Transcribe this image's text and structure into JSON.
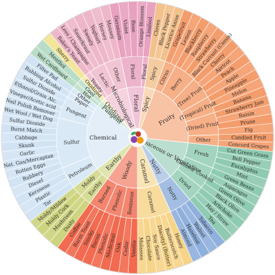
{
  "wheel": {
    "categories": [
      {
        "name": "Floral",
        "color": "#e8a2c0",
        "subs": [
          {
            "name": "Floral",
            "tastes": [
              "Geranium",
              "Violet",
              "Rose",
              "Orange Blossom"
            ]
          },
          {
            "name": "Floral",
            "tastes": [
              "Linalool"
            ]
          }
        ]
      },
      {
        "name": "Spicy",
        "color": "#f3c18c",
        "subs": [
          {
            "name": "Spicy",
            "tastes": [
              "Cloves",
              "Black Pepper",
              "Licorice Anise"
            ]
          }
        ]
      },
      {
        "name": "Fruity",
        "color": "#f49d6c",
        "subs": [
          {
            "name": "Citrus",
            "tastes": [
              "Grapefruit",
              "Lemon"
            ]
          },
          {
            "name": "Berry",
            "tastes": [
              "Blackberry",
              "Raspberry",
              "Strawberry",
              "Black Currant (Cassis)"
            ]
          },
          {
            "name": "(Tree) Fruit",
            "tastes": [
              "Cherry",
              "Apricot",
              "Peach",
              "Apple"
            ]
          },
          {
            "name": "(Tropical) Fruit",
            "tastes": [
              "Pineapple",
              "Melon",
              "Banana"
            ]
          },
          {
            "name": "(Dried) Fruit",
            "tastes": [
              "Strawberry Jam",
              "Raisin",
              "Prune",
              "Fig"
            ]
          },
          {
            "name": "Other",
            "tastes": [
              "Candied Fruit",
              "Concord Grapes"
            ]
          }
        ]
      },
      {
        "name": "Herbaceous or Vegetative",
        "color": "#8fcab2",
        "subs": [
          {
            "name": "Fresh",
            "tastes": [
              "Cut Green Grass",
              "Bell Pepper",
              "Eucalyptus",
              "Mint"
            ]
          },
          {
            "name": "Canned/ Cooked",
            "tastes": [
              "Green Beans",
              "Asparagus",
              "Green Olive",
              "Black Olive"
            ]
          },
          {
            "name": "Dried",
            "tastes": [
              "Artichoke",
              "Hay / Straw",
              "Tea"
            ]
          }
        ]
      },
      {
        "name": "Nutty",
        "color": "#8fb0dc",
        "subs": [
          {
            "name": "Nutty",
            "tastes": [
              "Tobacco",
              "Walnut",
              "Hazelnut",
              "Almond"
            ]
          }
        ]
      },
      {
        "name": "Caramel",
        "color": "#f6d488",
        "subs": [
          {
            "name": "Caramel",
            "tastes": [
              "Honey",
              "Butterscotch",
              "Diacetyl (Butter)",
              "Soy Sauce",
              "Chocolate",
              "Molasses"
            ]
          }
        ]
      },
      {
        "name": "Woody",
        "color": "#f26a4f",
        "subs": [
          {
            "name": "Resinous",
            "tastes": [
              "Vanilla",
              "Cedar",
              "Oak"
            ]
          },
          {
            "name": "Phenolic",
            "tastes": [
              "Medicinal",
              "Phenolic",
              "Bacon"
            ]
          },
          {
            "name": "Burned",
            "tastes": [
              "Smoky",
              "Burnt Toast",
              "Coffee"
            ]
          }
        ]
      },
      {
        "name": "Earthy",
        "color": "#cdd47e",
        "subs": [
          {
            "name": "Earthy",
            "tastes": [
              "Dusty",
              "Mushroom"
            ]
          },
          {
            "name": "Moldy",
            "tastes": [
              "Moldy Cork",
              "Moldy/Mildew"
            ]
          }
        ]
      },
      {
        "name": "Chemical",
        "color": "#d2e4f4",
        "subs": [
          {
            "name": "Petroleum",
            "tastes": [
              "Tar",
              "Plastic",
              "Kerosene",
              "Diesel"
            ]
          },
          {
            "name": "Sulfur",
            "tastes": [
              "Rubbery",
              "Rotten Eggs",
              "Nat. Gas/Mercaptan",
              "Garlic",
              "Skunk",
              "Cabbage",
              "Burnt Match",
              "Sulfur Dioxide",
              "Wet Wool / Wet Dog"
            ]
          },
          {
            "name": "Pungent",
            "tastes": [
              "Nail Polish Remover",
              "Vinegar/Acetic acid",
              "Ethanol/Grain Alc.",
              "Sulfur Dioxide"
            ]
          },
          {
            "name": "Paper",
            "tastes": [
              "Rubbing Alcohol"
            ]
          },
          {
            "name": "Other",
            "tastes": [
              "Filter Pad"
            ]
          }
        ]
      },
      {
        "name": "Pungent",
        "color": "#b8dcc6",
        "subs": [
          {
            "name": "Hot",
            "tastes": [
              "Wet Cardboard"
            ]
          },
          {
            "name": "Cool",
            "tastes": [
              "Menthol"
            ]
          }
        ]
      },
      {
        "name": "Oxidized",
        "color": "#f3e59a",
        "subs": [
          {
            "name": "Oxidized",
            "tastes": [
              "Sherry"
            ]
          }
        ]
      },
      {
        "name": "Microbiological",
        "color": "#eeb7c9",
        "subs": [
          {
            "name": "Yeasty",
            "tastes": [
              "Baker's Yeast"
            ]
          },
          {
            "name": "Lactic",
            "tastes": [
              "Lees / Champagne",
              "Sauerkraut",
              "Sweaty"
            ]
          },
          {
            "name": "Other",
            "tastes": [
              "Yoghurt",
              "Horsey",
              "Mousey"
            ]
          }
        ]
      }
    ]
  }
}
